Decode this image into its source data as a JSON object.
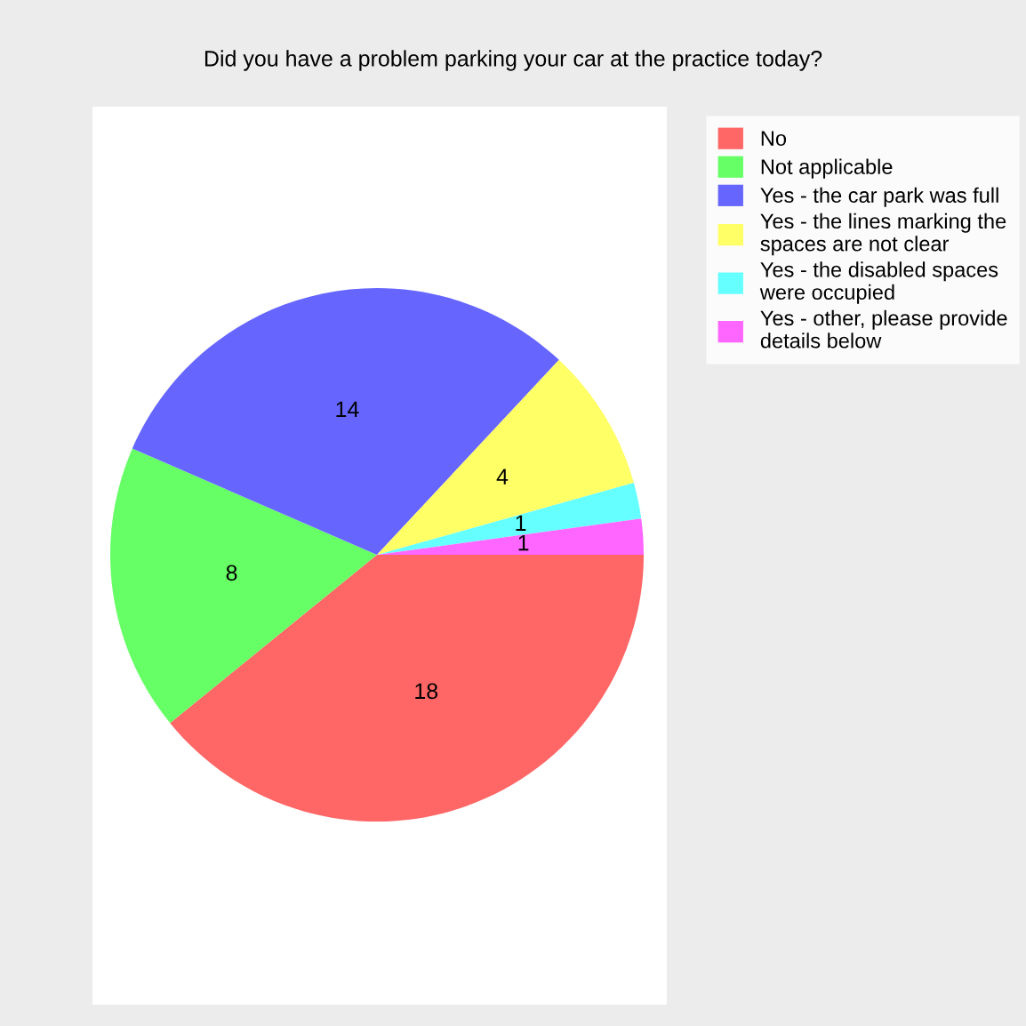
{
  "chart_data": {
    "type": "pie",
    "title": "Did you have a problem parking your car at the practice today?",
    "categories": [
      "No",
      "Not applicable",
      "Yes - the car park was full",
      "Yes - the lines marking the\nspaces are not clear",
      "Yes - the disabled spaces\nwere occupied",
      "Yes - other, please provide\ndetails below"
    ],
    "values": [
      18,
      8,
      14,
      4,
      1,
      1
    ],
    "colors": [
      "#ff6666",
      "#66ff66",
      "#6666ff",
      "#ffff66",
      "#66ffff",
      "#ff66ff"
    ],
    "data_labels": true,
    "legend": "right"
  }
}
